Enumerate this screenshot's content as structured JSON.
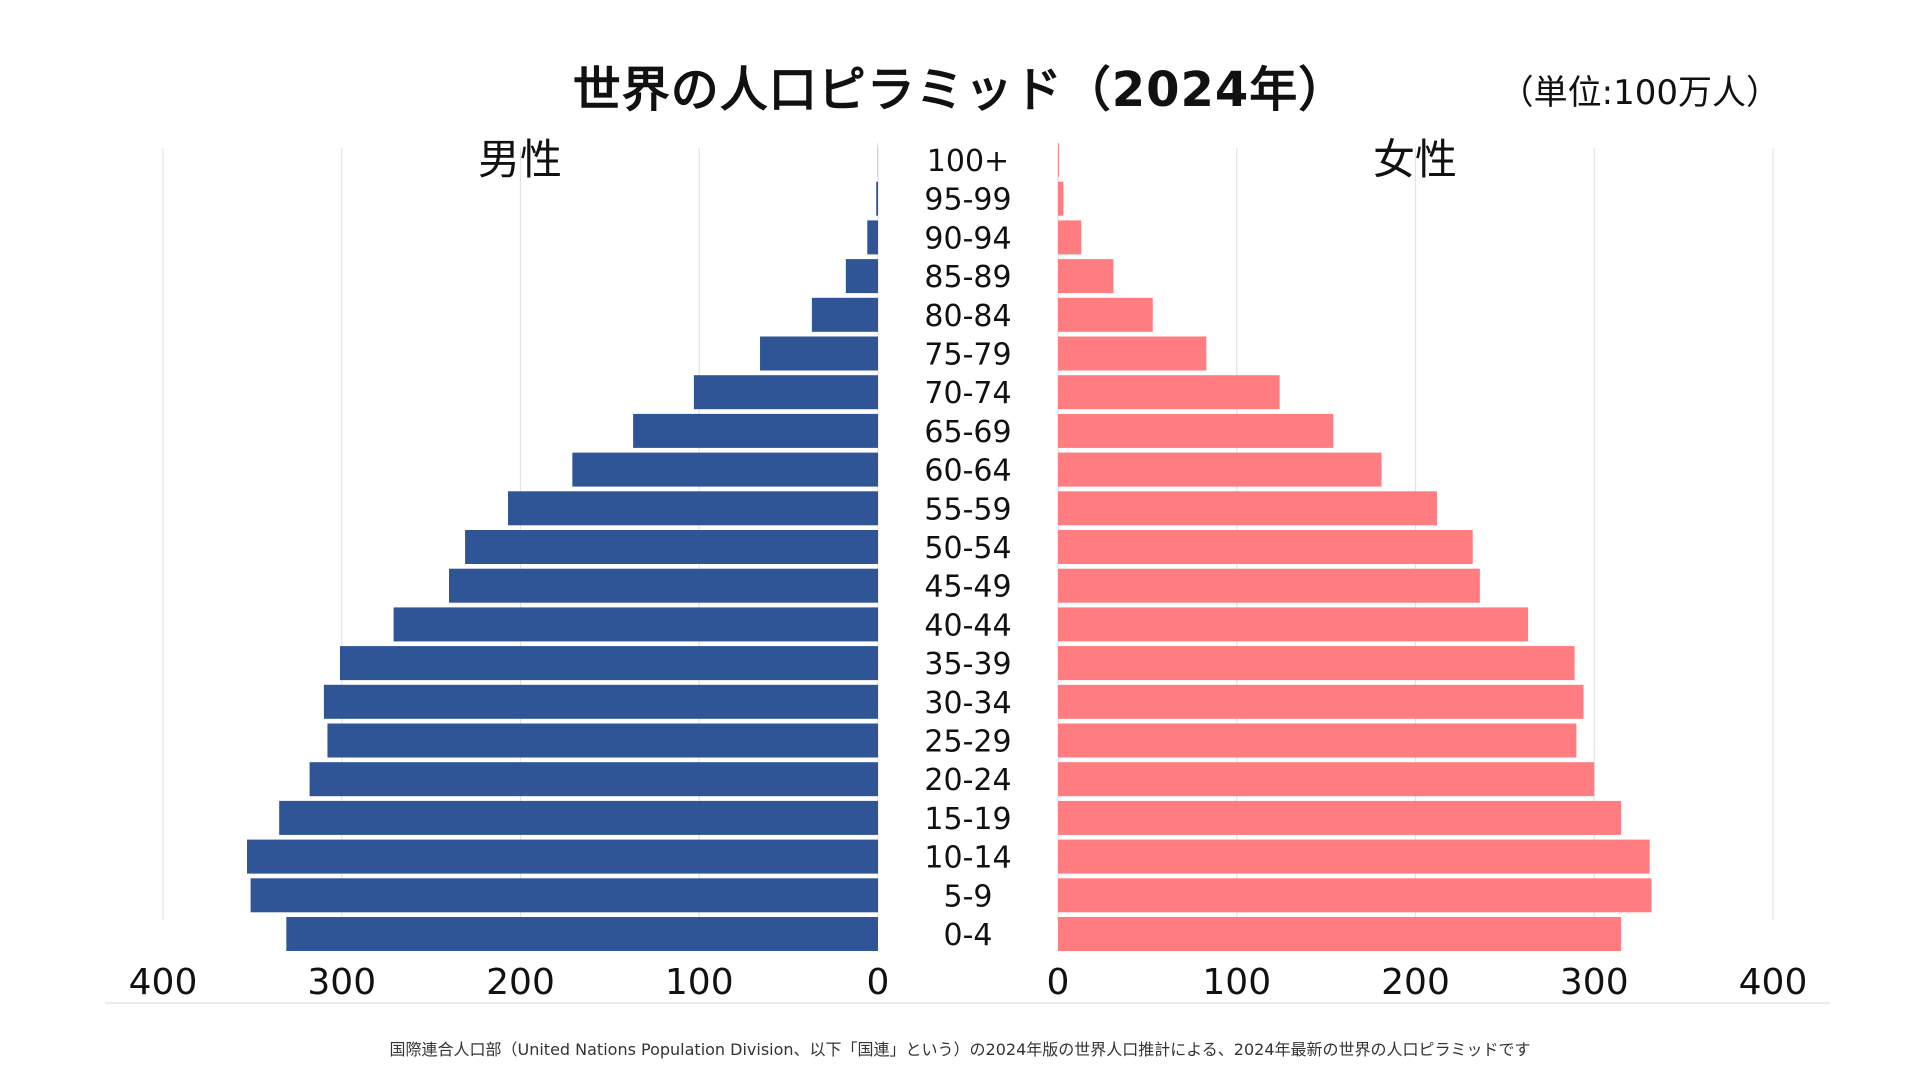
{
  "title": "世界の人口ピラミッド（2024年）",
  "unit": "（単位:100万人）",
  "footnote": "国際連合人口部（United Nations Population Division、以下「国連」という）の2024年版の世界人口推計による、2024年最新の世界の人口ピラミッドです",
  "chart_data": {
    "type": "bar",
    "orientation": "horizontal-pyramid",
    "categories": [
      "0-4",
      "5-9",
      "10-14",
      "15-19",
      "20-24",
      "25-29",
      "30-34",
      "35-39",
      "40-44",
      "45-49",
      "50-54",
      "55-59",
      "60-64",
      "65-69",
      "70-74",
      "75-79",
      "80-84",
      "85-89",
      "90-94",
      "95-99",
      "100+"
    ],
    "series": [
      {
        "name": "男性",
        "color": "#2f5597",
        "values": [
          331,
          351,
          353,
          335,
          318,
          308,
          310,
          301,
          271,
          240,
          231,
          207,
          171,
          137,
          103,
          66,
          37,
          18,
          6,
          1,
          0.1
        ]
      },
      {
        "name": "女性",
        "color": "#ff7c80",
        "values": [
          315,
          332,
          331,
          315,
          300,
          290,
          294,
          289,
          263,
          236,
          232,
          212,
          181,
          154,
          124,
          83,
          53,
          31,
          13,
          3,
          0.5
        ]
      }
    ],
    "xlim": [
      0,
      400
    ],
    "x_ticks_left": [
      "400",
      "300",
      "200",
      "100",
      "0"
    ],
    "x_ticks_right": [
      "0",
      "100",
      "200",
      "300",
      "400"
    ],
    "grid": true
  }
}
